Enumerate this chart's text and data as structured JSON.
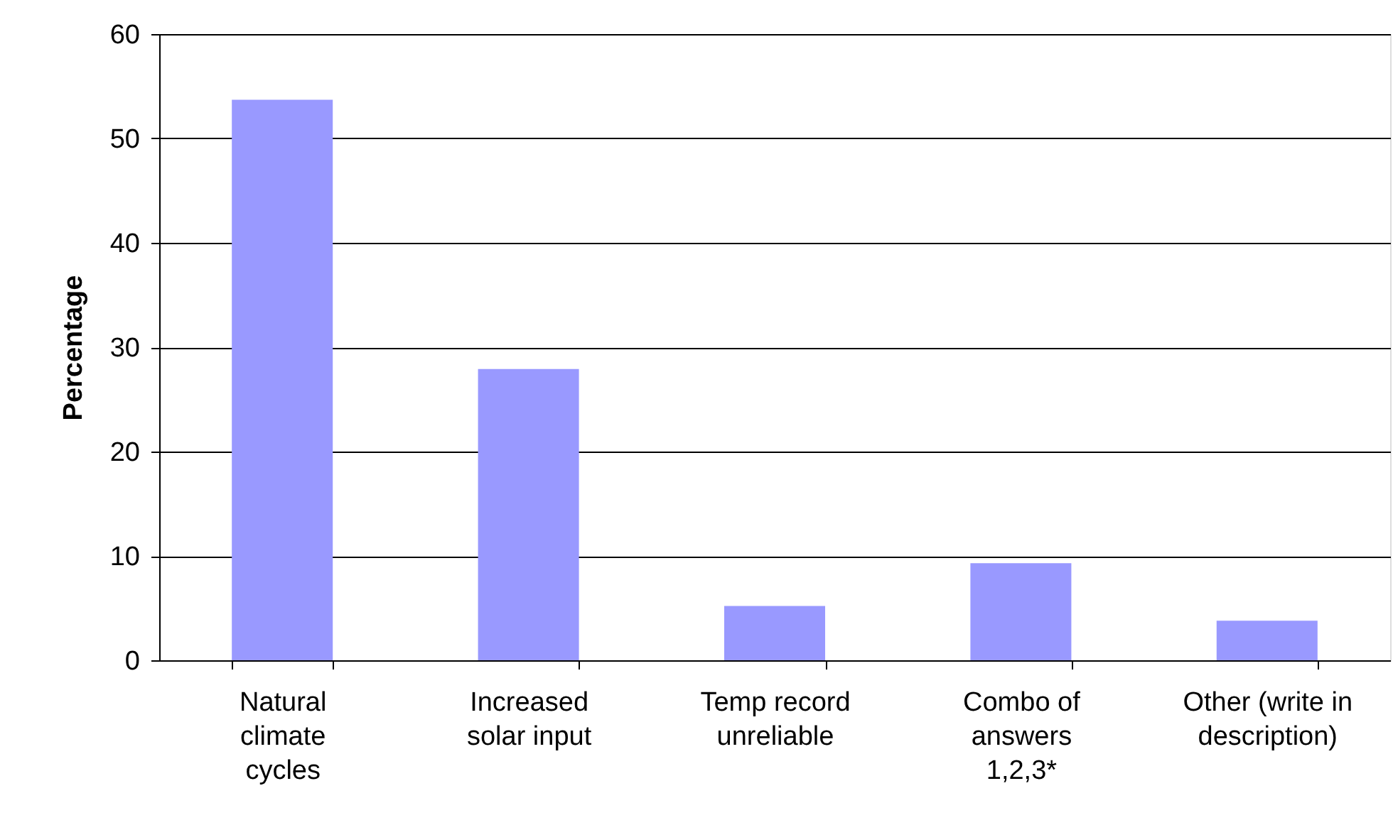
{
  "chart_data": {
    "type": "bar",
    "ylabel": "Percentage",
    "categories": [
      "Natural\nclimate\ncycles",
      "Increased\nsolar input",
      "Temp record\nunreliable",
      "Combo of\nanswers\n1,2,3*",
      "Other (write in\ndescription)"
    ],
    "values": [
      53.7,
      27.9,
      5.2,
      9.3,
      3.8
    ],
    "color": "#9999ff",
    "ylim": [
      0,
      60
    ],
    "yticks": [
      0,
      10,
      20,
      30,
      40,
      50,
      60
    ],
    "grid": "y"
  }
}
